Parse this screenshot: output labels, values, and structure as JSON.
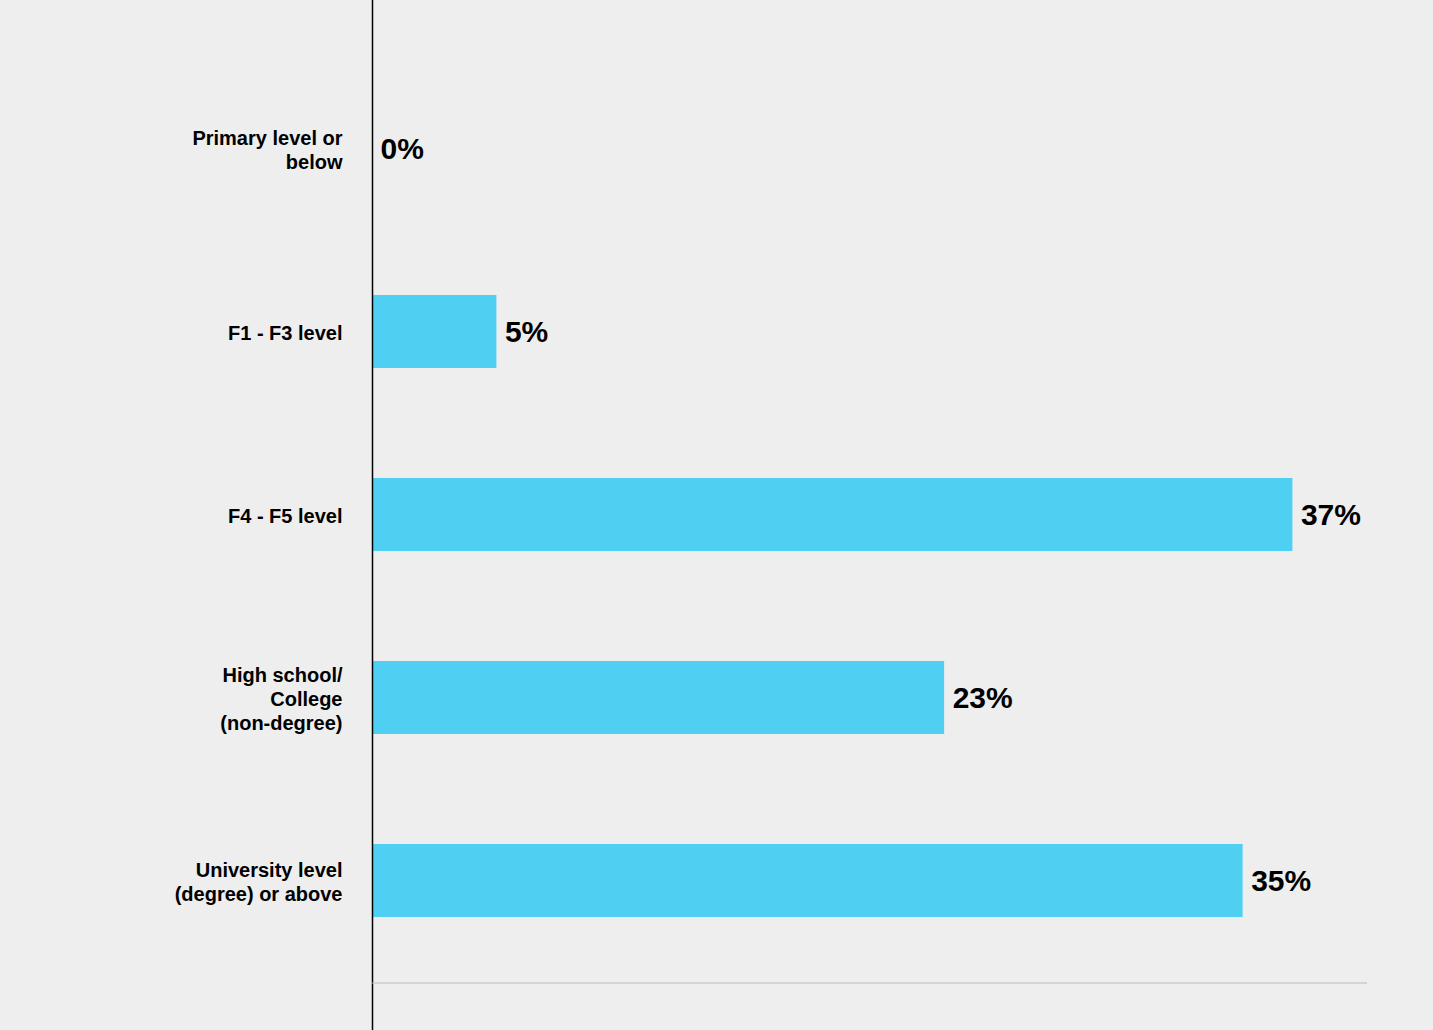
{
  "chart_data": {
    "type": "bar",
    "orientation": "horizontal",
    "categories": [
      "Primary level or below",
      "F1 - F3 level",
      "F4 - F5 level",
      "High school/ College (non-degree)",
      "University level (degree) or above"
    ],
    "values": [
      0,
      5,
      37,
      23,
      35
    ],
    "value_labels": [
      "0%",
      "5%",
      "37%",
      "23%",
      "35%"
    ],
    "color": "#4fd0f2",
    "xlim": [
      0,
      40
    ],
    "xticks": [],
    "data_labels": true,
    "tick_labels": "y",
    "grid": false
  }
}
